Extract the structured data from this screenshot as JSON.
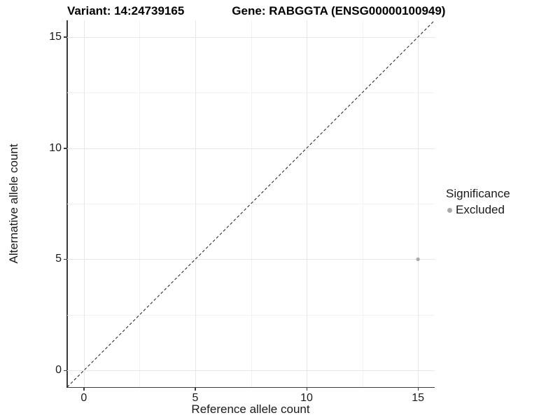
{
  "chart_data": {
    "type": "scatter",
    "title_left": "Variant: 14:24739165",
    "title_right": "Gene: RABGGTA (ENSG00000100949)",
    "xlabel": "Reference allele count",
    "ylabel": "Alternative allele count",
    "xlim": [
      -0.75,
      15.75
    ],
    "ylim": [
      -0.75,
      15.75
    ],
    "x_ticks": [
      0,
      5,
      10,
      15
    ],
    "y_ticks": [
      0,
      5,
      10,
      15
    ],
    "x_minor_ticks": [
      2.5,
      7.5,
      12.5
    ],
    "y_minor_ticks": [
      2.5,
      7.5,
      12.5
    ],
    "grid": true,
    "points": [
      {
        "x": 15,
        "y": 5,
        "series": "Excluded"
      }
    ],
    "reference_line": {
      "slope": 1,
      "intercept": 0,
      "style": "dashed"
    },
    "legend": {
      "title": "Significance",
      "position": "right",
      "items": [
        {
          "label": "Excluded",
          "color": "#a9a9a9"
        }
      ]
    },
    "colors": {
      "point": "#a9a9a9",
      "grid_major": "#e7e7e7",
      "grid_minor": "#f2f2f2",
      "axis_line": "#3c3c3c",
      "reference_line": "#1a1a1a",
      "text": "#1a1a1a"
    }
  }
}
